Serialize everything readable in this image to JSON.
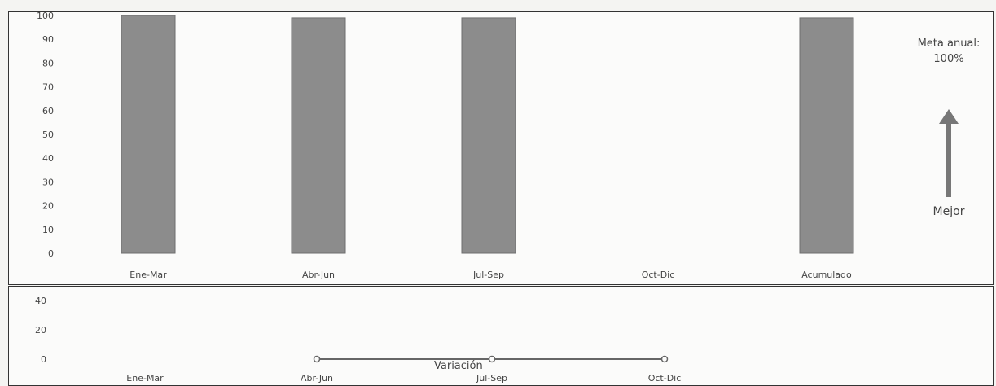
{
  "chart_data": [
    {
      "type": "bar",
      "categories": [
        "Ene-Mar",
        "Abr-Jun",
        "Jul-Sep",
        "Oct-Dic",
        "Acumulado"
      ],
      "values": [
        100,
        99,
        99,
        null,
        99
      ],
      "yticks": [
        0,
        10,
        20,
        30,
        40,
        50,
        60,
        70,
        80,
        90,
        100
      ],
      "ylim": [
        0,
        100
      ],
      "bar_color": "#8c8c8c",
      "grid": false,
      "annotations": {
        "goal_lines": [
          "Meta anual:",
          "100%"
        ],
        "better_label": "Mejor",
        "better_direction": "up"
      }
    },
    {
      "type": "line",
      "categories": [
        "Ene-Mar",
        "Abr-Jun",
        "Jul-Sep",
        "Oct-Dic"
      ],
      "series": [
        {
          "name": "Variación",
          "values": [
            null,
            0,
            0,
            0
          ]
        }
      ],
      "yticks": [
        0,
        20,
        40
      ],
      "ylim": [
        0,
        40
      ],
      "line_color": "#666666",
      "grid": false
    }
  ]
}
